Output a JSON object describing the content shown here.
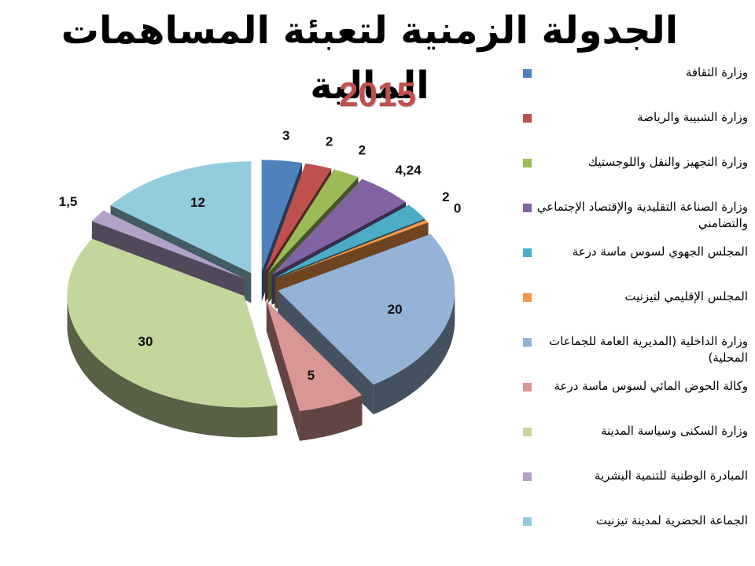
{
  "title": "الجدولة الزمنية لتعبئة المساهمات المالية",
  "subtitle": "2015",
  "chart_data": {
    "type": "pie",
    "title": "الجدولة الزمنية لتعبئة المساهمات المالية",
    "subtitle": "2015",
    "exploded": true,
    "three_d": true,
    "legend_position": "right",
    "slices": [
      {
        "label": "وزارة الثقافة",
        "value": 3,
        "display": "3",
        "color": "#4f81bd"
      },
      {
        "label": "وزارة الشبيبة والرياضة",
        "value": 2,
        "display": "2",
        "color": "#c0504d"
      },
      {
        "label": "وزارة التجهيز والنقل واللوجستيك",
        "value": 2,
        "display": "2",
        "color": "#9bbb59"
      },
      {
        "label": "وزارة الصناعة التقليدية والإقتصاد الإجتماعي والتضامني",
        "value": 4.24,
        "display": "4,24",
        "color": "#8064a2"
      },
      {
        "label": "المجلس الجهوي لسوس ماسة درعة",
        "value": 2,
        "display": "2",
        "color": "#4bacc6"
      },
      {
        "label": "المجلس الإقليمي لتيزنيت",
        "value": 0,
        "display": "0",
        "color": "#f79646"
      },
      {
        "label": "وزارة الداخلية (المديرية العامة للجماعات المحلية)",
        "value": 20,
        "display": "20",
        "color": "#95b3d7"
      },
      {
        "label": "وكالة الحوض المائي لسوس ماسة درعة",
        "value": 5,
        "display": "5",
        "color": "#d99694"
      },
      {
        "label": "وزارة السكنى وسياسة المدينة",
        "value": 30,
        "display": "30",
        "color": "#c3d69b"
      },
      {
        "label": "المبادرة الوطنية للتنمية البشرية",
        "value": 1.5,
        "display": "1,5",
        "color": "#b3a2c7"
      },
      {
        "label": "الجماعة الحضرية لمدينة تيزنيت",
        "value": 12,
        "display": "12",
        "color": "#93cddd"
      }
    ]
  }
}
